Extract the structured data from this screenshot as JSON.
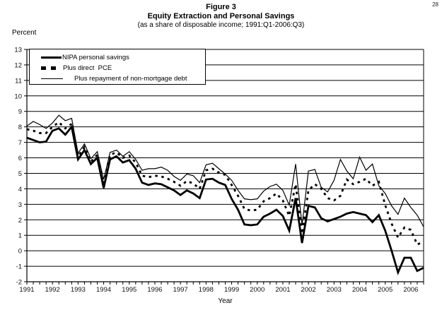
{
  "page": {
    "number": "28"
  },
  "titles": {
    "figure": "Figure 3",
    "main": "Equity Extraction and Personal Savings",
    "subtitle": "(as a share of disposable income; 1991:Q1-2006:Q3)"
  },
  "axes": {
    "y_label": "Percent",
    "x_label": "Year"
  },
  "legend": {
    "items": [
      {
        "label": "NIPA personal savings",
        "style": "thick-solid"
      },
      {
        "label": "Plus direct  PCE",
        "style": "thick-dashed"
      },
      {
        "label": "Plus repayment of non-mortgage debt",
        "style": "thin-solid"
      }
    ]
  },
  "chart_data": {
    "type": "line",
    "title": "Equity Extraction and Personal Savings",
    "subtitle": "(as a share of disposable income; 1991:Q1-2006:Q3)",
    "xlabel": "Year",
    "ylabel": "Percent",
    "ylim": [
      -2,
      13
    ],
    "y_ticks": [
      -2,
      -1,
      0,
      1,
      2,
      3,
      4,
      5,
      6,
      7,
      8,
      9,
      10,
      11,
      12,
      13
    ],
    "x_tick_years": [
      1991,
      1992,
      1993,
      1994,
      1995,
      1996,
      1997,
      1998,
      1999,
      2000,
      2001,
      2002,
      2003,
      2004,
      2005,
      2006
    ],
    "grid": "horizontal-every-integer",
    "legend_position": "upper-left-box",
    "categories": [
      "1991:Q1",
      "1991:Q2",
      "1991:Q3",
      "1991:Q4",
      "1992:Q1",
      "1992:Q2",
      "1992:Q3",
      "1992:Q4",
      "1993:Q1",
      "1993:Q2",
      "1993:Q3",
      "1993:Q4",
      "1994:Q1",
      "1994:Q2",
      "1994:Q3",
      "1994:Q4",
      "1995:Q1",
      "1995:Q2",
      "1995:Q3",
      "1995:Q4",
      "1996:Q1",
      "1996:Q2",
      "1996:Q3",
      "1996:Q4",
      "1997:Q1",
      "1997:Q2",
      "1997:Q3",
      "1997:Q4",
      "1998:Q1",
      "1998:Q2",
      "1998:Q3",
      "1998:Q4",
      "1999:Q1",
      "1999:Q2",
      "1999:Q3",
      "1999:Q4",
      "2000:Q1",
      "2000:Q2",
      "2000:Q3",
      "2000:Q4",
      "2001:Q1",
      "2001:Q2",
      "2001:Q3",
      "2001:Q4",
      "2002:Q1",
      "2002:Q2",
      "2002:Q3",
      "2002:Q4",
      "2003:Q1",
      "2003:Q2",
      "2003:Q3",
      "2003:Q4",
      "2004:Q1",
      "2004:Q2",
      "2004:Q3",
      "2004:Q4",
      "2005:Q1",
      "2005:Q2",
      "2005:Q3",
      "2005:Q4",
      "2006:Q1",
      "2006:Q2",
      "2006:Q3"
    ],
    "series": [
      {
        "name": "NIPA personal savings",
        "style": "thick-solid",
        "values": [
          7.3,
          7.15,
          7.0,
          7.05,
          7.75,
          7.9,
          7.5,
          8.0,
          5.9,
          6.5,
          5.6,
          6.0,
          4.05,
          5.9,
          6.1,
          5.7,
          5.85,
          5.3,
          4.4,
          4.25,
          4.35,
          4.3,
          4.1,
          3.9,
          3.6,
          3.9,
          3.7,
          3.4,
          4.6,
          4.65,
          4.4,
          4.25,
          3.35,
          2.65,
          1.7,
          1.65,
          1.7,
          2.2,
          2.4,
          2.65,
          2.25,
          1.3,
          3.4,
          0.5,
          2.9,
          2.8,
          2.1,
          1.9,
          2.05,
          2.2,
          2.4,
          2.5,
          2.4,
          2.3,
          1.85,
          2.3,
          1.3,
          0.0,
          -1.4,
          -0.45,
          -0.45,
          -1.3,
          -1.1
        ]
      },
      {
        "name": "Plus direct PCE",
        "style": "thick-dashed",
        "values": [
          7.85,
          7.75,
          7.6,
          7.6,
          8.0,
          8.3,
          7.9,
          8.2,
          6.1,
          6.7,
          5.75,
          6.2,
          4.35,
          6.2,
          6.35,
          6.0,
          6.15,
          5.7,
          4.85,
          4.75,
          4.85,
          4.8,
          4.65,
          4.45,
          4.2,
          4.5,
          4.35,
          4.0,
          5.2,
          5.3,
          5.05,
          4.9,
          4.25,
          3.55,
          2.7,
          2.6,
          2.65,
          3.2,
          3.4,
          3.7,
          3.25,
          2.25,
          4.3,
          1.1,
          3.9,
          4.3,
          4.0,
          3.4,
          3.25,
          3.55,
          4.6,
          4.3,
          4.45,
          4.65,
          4.2,
          4.45,
          2.95,
          1.75,
          0.85,
          1.5,
          1.35,
          0.4,
          0.6
        ]
      },
      {
        "name": "Plus repayment of non-mortgage debt",
        "style": "thin-solid",
        "values": [
          8.05,
          8.35,
          8.15,
          7.9,
          8.25,
          8.75,
          8.4,
          8.55,
          6.3,
          6.9,
          5.95,
          6.4,
          4.6,
          6.35,
          6.5,
          6.1,
          6.4,
          5.9,
          5.2,
          5.3,
          5.3,
          5.4,
          5.2,
          4.8,
          4.55,
          4.95,
          4.85,
          4.4,
          5.55,
          5.65,
          5.3,
          4.95,
          4.55,
          3.9,
          3.35,
          3.3,
          3.35,
          3.85,
          4.15,
          4.3,
          3.9,
          2.95,
          5.6,
          1.65,
          5.15,
          5.25,
          4.1,
          3.8,
          4.55,
          5.9,
          5.15,
          4.65,
          6.05,
          5.2,
          5.6,
          4.2,
          3.7,
          2.9,
          2.35,
          3.4,
          2.8,
          2.3,
          1.55
        ]
      }
    ]
  }
}
